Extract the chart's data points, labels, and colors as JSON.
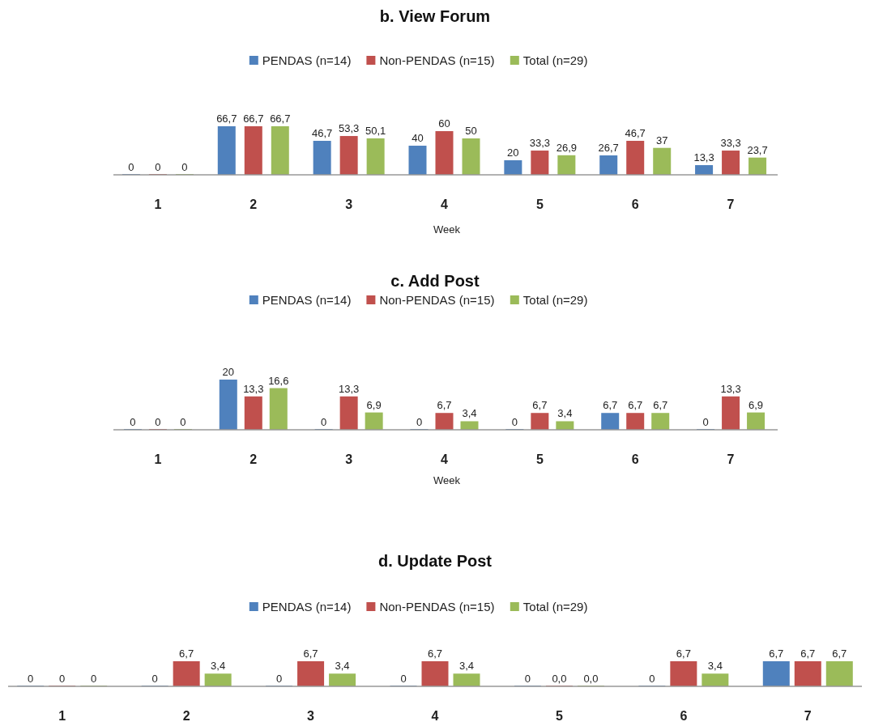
{
  "chart_data": [
    {
      "type": "bar",
      "title": "b. View Forum",
      "xlabel": "Week",
      "legend": "top",
      "categories": [
        "1",
        "2",
        "3",
        "4",
        "5",
        "6",
        "7"
      ],
      "series": [
        {
          "name": "PENDAS (n=14)",
          "color": "#4f81bd",
          "values": [
            0,
            66.7,
            46.7,
            40,
            20,
            26.7,
            13.3
          ],
          "value_labels": [
            "0",
            "66,7",
            "46,7",
            "40",
            "20",
            "26,7",
            "13,3"
          ]
        },
        {
          "name": "Non-PENDAS (n=15)",
          "color": "#c0504d",
          "values": [
            0,
            66.7,
            53.3,
            60,
            33.3,
            46.7,
            33.3
          ],
          "value_labels": [
            "0",
            "66,7",
            "53,3",
            "60",
            "33,3",
            "46,7",
            "33,3"
          ]
        },
        {
          "name": "Total (n=29)",
          "color": "#9bbb59",
          "values": [
            0,
            66.7,
            50.1,
            50,
            26.9,
            37,
            23.7
          ],
          "value_labels": [
            "0",
            "66,7",
            "50,1",
            "50",
            "26,9",
            "37",
            "23,7"
          ]
        }
      ]
    },
    {
      "type": "bar",
      "title": "c. Add Post",
      "xlabel": "Week",
      "legend": "top",
      "categories": [
        "1",
        "2",
        "3",
        "4",
        "5",
        "6",
        "7"
      ],
      "series": [
        {
          "name": "PENDAS (n=14)",
          "color": "#4f81bd",
          "values": [
            0,
            20,
            0,
            0,
            0,
            6.7,
            0
          ],
          "value_labels": [
            "0",
            "20",
            "0",
            "0",
            "0",
            "6,7",
            "0"
          ]
        },
        {
          "name": "Non-PENDAS (n=15)",
          "color": "#c0504d",
          "values": [
            0,
            13.3,
            13.3,
            6.7,
            6.7,
            6.7,
            13.3
          ],
          "value_labels": [
            "0",
            "13,3",
            "13,3",
            "6,7",
            "6,7",
            "6,7",
            "13,3"
          ]
        },
        {
          "name": "Total (n=29)",
          "color": "#9bbb59",
          "values": [
            0,
            16.6,
            6.9,
            3.4,
            3.4,
            6.7,
            6.9
          ],
          "value_labels": [
            "0",
            "16,6",
            "6,9",
            "3,4",
            "3,4",
            "6,7",
            "6,9"
          ]
        }
      ]
    },
    {
      "type": "bar",
      "title": "d. Update Post",
      "legend": "top",
      "categories": [
        "1",
        "2",
        "3",
        "4",
        "5",
        "6",
        "7"
      ],
      "series": [
        {
          "name": "PENDAS (n=14)",
          "color": "#4f81bd",
          "values": [
            0,
            0,
            0,
            0,
            0,
            0,
            6.7
          ],
          "value_labels": [
            "0",
            "0",
            "0",
            "0",
            "0",
            "0",
            "6,7"
          ]
        },
        {
          "name": "Non-PENDAS (n=15)",
          "color": "#c0504d",
          "values": [
            0,
            6.7,
            6.7,
            6.7,
            0,
            6.7,
            6.7
          ],
          "value_labels": [
            "0",
            "6,7",
            "6,7",
            "6,7",
            "0,0",
            "6,7",
            "6,7"
          ]
        },
        {
          "name": "Total (n=29)",
          "color": "#9bbb59",
          "values": [
            0,
            3.4,
            3.4,
            3.4,
            0,
            3.4,
            6.7
          ],
          "value_labels": [
            "0",
            "3,4",
            "3,4",
            "3,4",
            "0,0",
            "3,4",
            "6,7"
          ]
        }
      ]
    }
  ]
}
